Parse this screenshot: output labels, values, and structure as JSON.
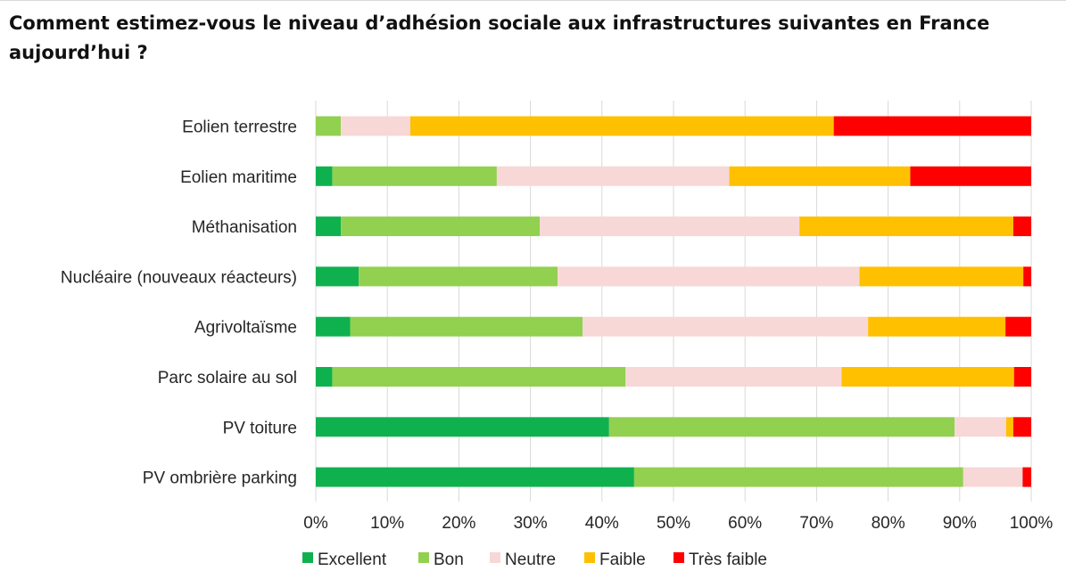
{
  "title": "Comment estimez-vous le niveau d’adhésion sociale aux infrastructures suivantes en France aujourd’hui ?",
  "chart_data": {
    "type": "bar",
    "orientation": "horizontal",
    "stacked": "percent",
    "categories": [
      "Eolien terrestre",
      "Eolien maritime",
      "Méthanisation",
      "Nucléaire (nouveaux réacteurs)",
      "Agrivoltaïsme",
      "Parc solaire au sol",
      "PV toiture",
      "PV ombrière parking"
    ],
    "series": [
      {
        "name": "Excellent",
        "color": "#0fb14f",
        "values": [
          0,
          2.3,
          3.5,
          6,
          4.8,
          2.3,
          41,
          44.5
        ]
      },
      {
        "name": "Bon",
        "color": "#92d050",
        "values": [
          3.5,
          23,
          27.8,
          27.8,
          32.5,
          41,
          48.3,
          46
        ]
      },
      {
        "name": "Neutre",
        "color": "#f8d7d7",
        "values": [
          9.7,
          32.5,
          36.3,
          42.2,
          39.9,
          30.2,
          7.2,
          8.3
        ]
      },
      {
        "name": "Faible",
        "color": "#ffc000",
        "values": [
          59.2,
          25.3,
          29.9,
          22.9,
          19.2,
          24.1,
          1,
          0
        ]
      },
      {
        "name": "Très faible",
        "color": "#ff0000",
        "values": [
          27.6,
          16.9,
          2.5,
          1.1,
          3.6,
          2.4,
          2.5,
          1.2
        ]
      }
    ],
    "xlim": [
      0,
      100
    ],
    "xticks": [
      "0%",
      "10%",
      "20%",
      "30%",
      "40%",
      "50%",
      "60%",
      "70%",
      "80%",
      "90%",
      "100%"
    ],
    "grid": "vertical",
    "legend": "bottom"
  }
}
